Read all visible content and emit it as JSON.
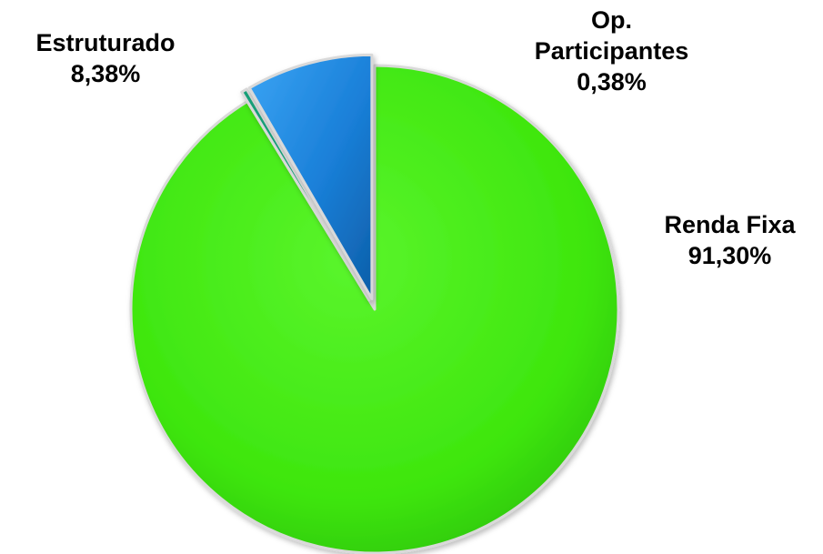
{
  "chart_data": {
    "type": "pie",
    "slices": [
      {
        "name": "Renda Fixa",
        "value": 91.3,
        "label": "91,30%",
        "color": "#3fe80e",
        "exploded": false
      },
      {
        "name": "Op. Participantes",
        "value": 0.38,
        "label": "0,38%",
        "color": "#14a078",
        "exploded": true
      },
      {
        "name": "Estruturado",
        "value": 8.38,
        "label": "8,38%",
        "color": "#1478d2",
        "exploded": true
      }
    ],
    "title": "",
    "legend": "none",
    "labels": {
      "estruturado": {
        "line1": "Estruturado",
        "line2": "8,38%"
      },
      "op": {
        "line1": "Op.",
        "line2": "Participantes",
        "line3": "0,38%"
      },
      "renda": {
        "line1": "Renda Fixa",
        "line2": "91,30%"
      }
    }
  }
}
